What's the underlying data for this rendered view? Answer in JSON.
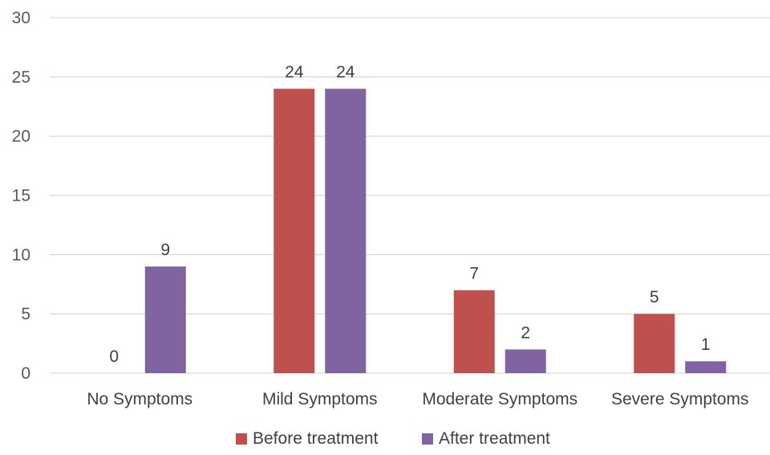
{
  "chart_data": {
    "type": "bar",
    "categories": [
      "No Symptoms",
      "Mild Symptoms",
      "Moderate Symptoms",
      "Severe Symptoms"
    ],
    "series": [
      {
        "name": "Before treatment",
        "values": [
          0,
          24,
          7,
          5
        ],
        "color": "#C0504D"
      },
      {
        "name": "After treatment",
        "values": [
          9,
          24,
          2,
          1
        ],
        "color": "#8064A2"
      }
    ],
    "yticks": [
      0,
      5,
      10,
      15,
      20,
      25,
      30
    ],
    "ylim": [
      0,
      30
    ],
    "grid": true,
    "legend_position": "bottom",
    "data_labels": true
  }
}
